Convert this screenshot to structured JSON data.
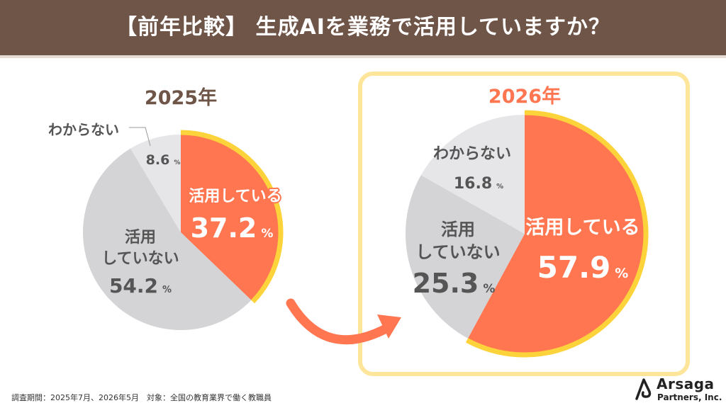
{
  "header": {
    "title": "【前年比較】 生成AIを業務で活用していますか？"
  },
  "chart_data": [
    {
      "type": "pie",
      "title": "2025年",
      "slices": [
        {
          "label": "活用している",
          "value": 37.2,
          "display": "37.2",
          "color": "#ff7650"
        },
        {
          "label": "活用\nしていない",
          "value": 54.2,
          "display": "54.2",
          "color": "#d4d4d7"
        },
        {
          "label": "わからない",
          "value": 8.6,
          "display": "8.6",
          "color": "#e6e6e9"
        }
      ],
      "unit": "%",
      "highlight_color": "#fcd33a"
    },
    {
      "type": "pie",
      "title": "2026年",
      "slices": [
        {
          "label": "活用している",
          "value": 57.9,
          "display": "57.9",
          "color": "#ff7650"
        },
        {
          "label": "活用\nしていない",
          "value": 25.3,
          "display": "25.3",
          "color": "#d4d4d7"
        },
        {
          "label": "わからない",
          "value": 16.8,
          "display": "16.8",
          "color": "#e6e6e9"
        }
      ],
      "unit": "%",
      "highlight_color": "#fcd33a",
      "highlighted_year": true
    }
  ],
  "colors": {
    "header_bg": "#6e5548",
    "title_2025": "#6e5548",
    "title_2026": "#ff7650",
    "frame": "#fde69a",
    "arrow": "#ff7650"
  },
  "footer": {
    "note": "調査期間：2025年7月、2026年5月　対象：全国の教育業界で働く教職員"
  },
  "logo": {
    "name": "Arsaga",
    "sub": "Partners, Inc."
  }
}
